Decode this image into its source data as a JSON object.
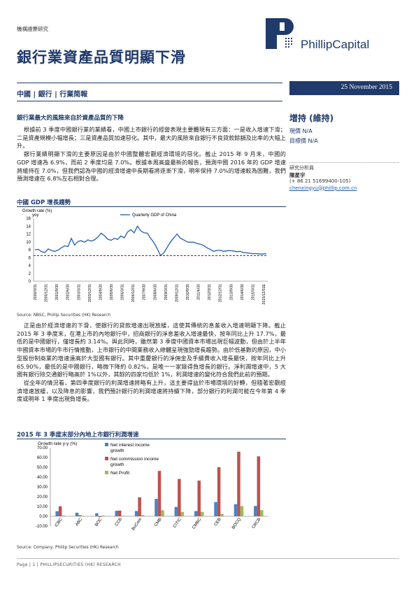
{
  "header": {
    "category": "機構證票研究",
    "title": "銀行業資產品質明顯下滑",
    "logo_text": "PhillipCapital",
    "breadcrumb": "中國  |  銀行  |  行業简報",
    "date": "25 November 2015"
  },
  "sidebar": {
    "rating": "增持 (維持)",
    "current_price": "現價  N/A",
    "target_price": "目標價  N/A",
    "analyst_label": "研究分析員",
    "analyst_name": "陳星宇",
    "analyst_phone": "(+ 86 21 51699400-105)",
    "analyst_email": "chenxingyu@phillip.com.cn"
  },
  "section_heading": "銀行業最大的風險來自於資產品質的下降",
  "paragraphs": {
    "p1": "根據前 3 季度中國銀行業的業績看，中國上市銀行的經營表現主要體現有三方面：一是收入增速下滑；二是資產規模小幅增長；三是資產品質加速惡化。其中，最大的風險來自銀行不良貸款餘額及比率的大幅上升。",
    "p2": "銀行業績明顯下滑的主要原因是由於中國整體宏觀經濟環境的惡化。截止 2015 年 9 月末，中國的 GDP 增速為 6.9%，而前 2 季度均是 7.0%。根據本周高盛最新的報告，預測中國 2016 年的 GDP 增速將維持在 7.0%，但我們認為中國的經濟增速中長期看將逐漸下滑，明年保持 7.0%的增速較為困難，我們預測增速在 6.8%左右相對合理。",
    "p3": "正是由於經濟增速的下滑，使銀行的貸款增速出現放緩，這使其傳統的息差收入增速明顯下降。截止 2015 年 3 季度末，在港上市的內地銀行中，招商銀行的淨息差收入增速最快，按年同比上升 17.7%，最低的是中國銀行，僅增長約 3.14%。與此同時，雖然第 3 季度中國資本市場出現巨幅波動，但由於上半年中國資本市場的牛市行情推動，上市銀行的中間業務收入總體呈現強勁增長趨勢。由於低基數的原因，中小型股份制商業的增速遠高於大型國有銀行。其中重慶銀行的淨佣金及手續費收入增長最快，按年同比上升 65.90%，最低的是中國銀行，略微下降約 0.82%，是唯一一家錄得負增長的銀行。淨利潤增速中，5 大國有銀行除交通銀行略高於 1%以外，其餘的四家均低於 1%，利潤增速的變化符合我們此前的預期。",
    "p4": "從全年的情況看，第四季度銀行的利潤增速將略有上升，這主要得益於市場環境的好轉，但隨著宏觀經濟增速放緩，以及降息的影響，我們預計銀行的利潤增速將持續下降，部分銀行的利潤可能在今年第 4 季度或明年 1 季度出現負增長。"
  },
  "chart1": {
    "title": "中國 GDP 增長趨勢",
    "source": "Source: NBSC, Phillip Securities (HK) Research"
  },
  "chart2": {
    "title": "2015 年 3 季度末部分內地上市銀行利潤增速",
    "source": "Source: Company, Phillip Securities (HK) Research"
  },
  "chart_data": [
    {
      "type": "line",
      "ylabel": "Growth rate (%)",
      "ylabel2": "yoy",
      "ylim": [
        0,
        16
      ],
      "yticks": [
        "0",
        "2",
        "4",
        "6",
        "8",
        "10",
        "12",
        "14",
        "16"
      ],
      "x_labels": [
        "2000/3/31",
        "2000/12/31",
        "2001/9/30",
        "2002/6/30",
        "2003/3/31",
        "2003/12/31",
        "2004/9/30",
        "2005/6/30",
        "2006/3/31",
        "2006/12/31",
        "2007/9/30",
        "2008/6/30",
        "2009/3/31",
        "2009/12/31",
        "2010/9/30",
        "2011/6/30",
        "2012/3/31",
        "2012/12/31",
        "2013/9/30",
        "2014/6/30",
        "2015/3/31",
        "2015/12/31E"
      ],
      "series": [
        {
          "name": "Quarterly GDP of China",
          "color": "#1f5fb0",
          "values": [
            8.0,
            8.1,
            7.5,
            7.3,
            8.2,
            7.8,
            7.6,
            7.9,
            8.5,
            9.0,
            8.8,
            10.9,
            9.2,
            10.1,
            10.3,
            9.9,
            10.5,
            10.2,
            10.5,
            11.2,
            12.2,
            11.6,
            10.7,
            10.4,
            10.9,
            10.6,
            11.5,
            11.0,
            12.5,
            13.1,
            12.3,
            14.0,
            12.8,
            12.3,
            12.2,
            10.9,
            9.8,
            8.2,
            6.5,
            7.2,
            8.6,
            10.0,
            11.0,
            12.0,
            10.9,
            10.5,
            10.0,
            9.9,
            9.9,
            9.6,
            9.4,
            9.1,
            8.5,
            8.1,
            7.6,
            7.8,
            7.9,
            7.6,
            7.7,
            7.8,
            7.7,
            7.5,
            7.6,
            7.3,
            7.2,
            7.1,
            7.0,
            7.0,
            6.9,
            6.9,
            7.0
          ]
        },
        {
          "name": "threshold",
          "color": "#c00000",
          "values": [
            6.5
          ]
        }
      ]
    },
    {
      "type": "bar",
      "ylabel": "Growth rate y-y (%)",
      "ylim": [
        -10,
        70
      ],
      "yticks": [
        "-10.00",
        "0.00",
        "10.00",
        "20.00",
        "30.00",
        "40.00",
        "50.00",
        "60.00",
        "70.00"
      ],
      "categories": [
        "ICBC",
        "ABC",
        "BOC",
        "CCB",
        "BoCom",
        "CMB",
        "CITIC",
        "CMBC",
        "CEB",
        "BOCQ",
        "CRCB"
      ],
      "series": [
        {
          "name": "Net interest income growth",
          "color": "#4f81bd",
          "values": [
            5.2,
            3.6,
            3.1,
            5.6,
            5.4,
            17.7,
            9.5,
            5.3,
            14.5,
            12.3,
            10.5
          ]
        },
        {
          "name": "Net commission income growth",
          "color": "#c0504d",
          "values": [
            10.2,
            1.0,
            -0.82,
            5.8,
            19.3,
            46.3,
            38.1,
            36.4,
            50.1,
            65.9,
            61.2
          ]
        },
        {
          "name": "Net Profit",
          "color": "#9bbb59",
          "values": [
            0.7,
            0.5,
            0.8,
            0.5,
            1.2,
            6.1,
            4.4,
            4.5,
            2.4,
            10.4,
            6.2
          ]
        }
      ]
    }
  ],
  "footer": {
    "text": "Page | 1 | PHILLIPSECURITIES (HK) RESEARCH"
  }
}
